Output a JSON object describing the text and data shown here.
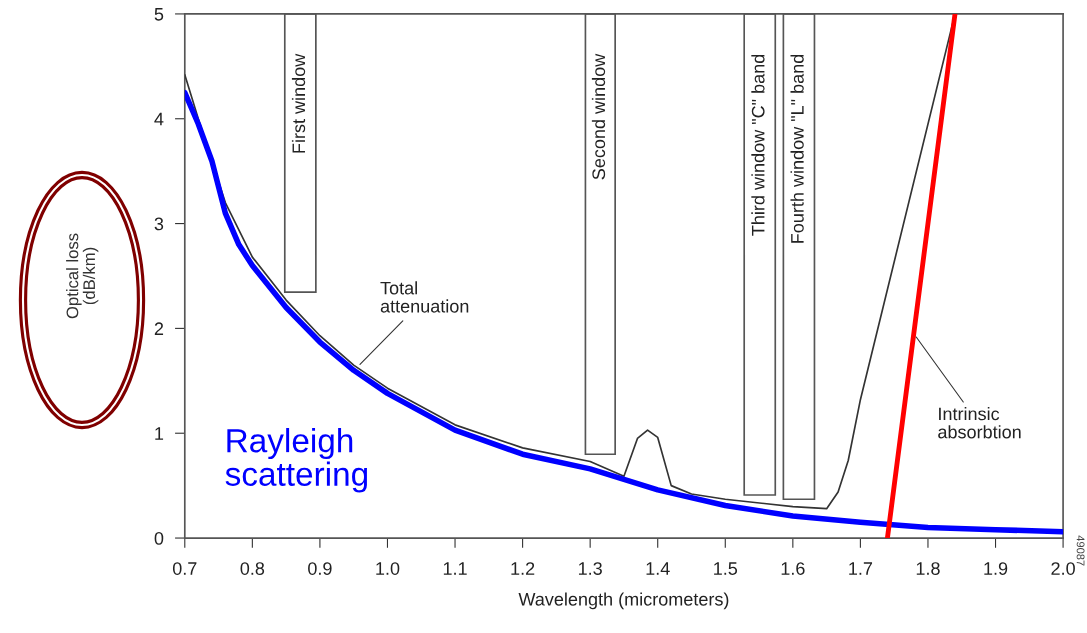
{
  "chart_data": {
    "type": "line",
    "xlabel": "Wavelength (micrometers)",
    "ylabel": "Optical loss\n(dB/km)",
    "xlim": [
      0.7,
      2.0
    ],
    "xticks": [
      0.7,
      0.8,
      0.9,
      {
        "value": 1,
        "label": "1.0"
      },
      1.1,
      1.2,
      1.3,
      1.4,
      1.5,
      1.6,
      1.7,
      1.8,
      1.9,
      {
        "value": 2,
        "label": "2.0"
      }
    ],
    "ylim": [
      0,
      5
    ],
    "yticks": [
      0,
      1,
      2,
      3,
      4,
      5
    ],
    "grid": false,
    "legend": false,
    "marker": "none",
    "line_style": "solid",
    "series": [
      {
        "name": "Total\nattenuation",
        "color": "#333333",
        "x": [
          0.7,
          0.72,
          0.76,
          0.8,
          0.85,
          0.9,
          0.95,
          1.0,
          1.1,
          1.2,
          1.3,
          1.35,
          1.37,
          1.385,
          1.4,
          1.42,
          1.45,
          1.5,
          1.6,
          1.65,
          1.667,
          1.682,
          1.7,
          1.84
        ],
        "values": [
          4.42,
          4.0,
          3.2,
          2.68,
          2.27,
          1.93,
          1.65,
          1.43,
          1.08,
          0.86,
          0.73,
          0.59,
          0.95,
          1.03,
          0.96,
          0.5,
          0.42,
          0.37,
          0.3,
          0.28,
          0.44,
          0.74,
          1.32,
          5.0
        ]
      },
      {
        "name": "Rayleigh\nscattering",
        "color": "#0000ff",
        "x": [
          0.7,
          0.72,
          0.74,
          0.76,
          0.78,
          0.8,
          0.85,
          0.9,
          0.95,
          1.0,
          1.1,
          1.2,
          1.3,
          1.4,
          1.5,
          1.6,
          1.7,
          1.8,
          1.9,
          2.0
        ],
        "values": [
          4.25,
          3.95,
          3.6,
          3.1,
          2.8,
          2.6,
          2.2,
          1.87,
          1.6,
          1.38,
          1.03,
          0.8,
          0.66,
          0.46,
          0.31,
          0.21,
          0.15,
          0.1,
          0.08,
          0.06
        ]
      },
      {
        "name": "Intrinsic\nabsorbtion",
        "color": "#ff0000",
        "x": [
          1.74,
          1.84
        ],
        "values": [
          0,
          5.0
        ]
      }
    ],
    "bands": [
      {
        "axis": "x",
        "from": 0.848,
        "to": 0.894,
        "label": "First window"
      },
      {
        "axis": "x",
        "from": 1.293,
        "to": 1.337,
        "label": "Second window"
      },
      {
        "axis": "x",
        "from": 1.528,
        "to": 1.574,
        "label": "Third window \"C\" band"
      },
      {
        "axis": "x",
        "from": 1.586,
        "to": 1.632,
        "label": "Fourth window \"L\" band"
      }
    ],
    "annotations": [
      "49087"
    ]
  }
}
